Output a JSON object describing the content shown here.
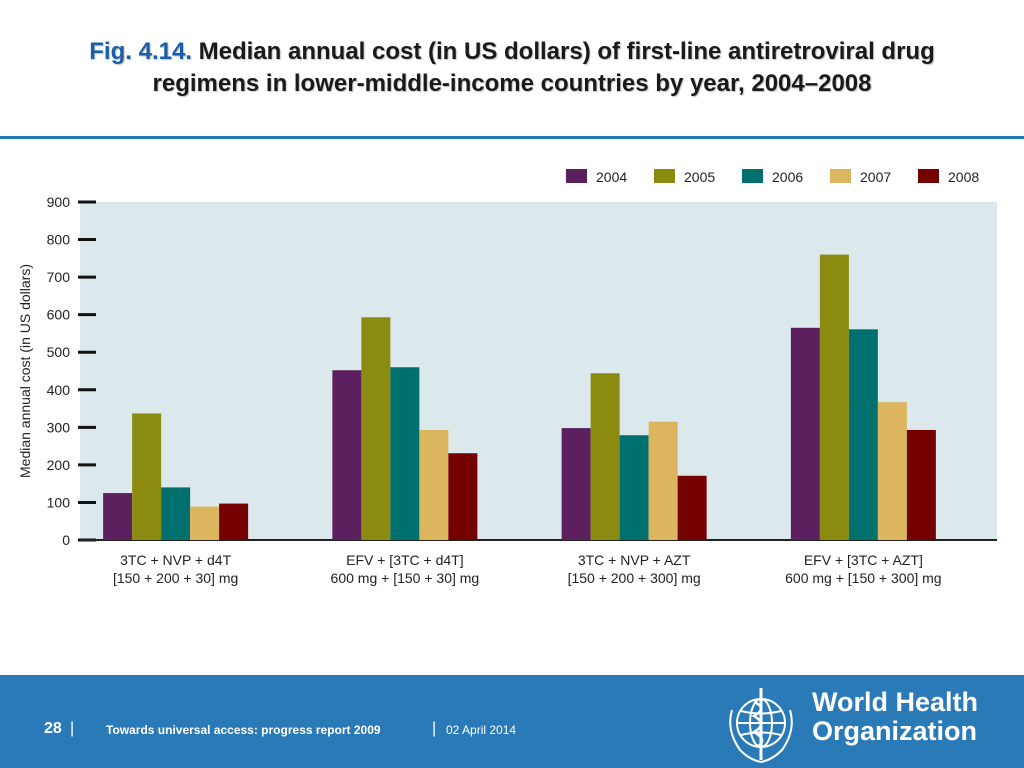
{
  "slide": {
    "fig_label": "Fig. 4.14.",
    "title_line1": "Median annual cost (in US dollars) of first-line antiretroviral drug",
    "title_line2": "regimens in lower-middle-income countries by year, 2004–2008"
  },
  "footer": {
    "page_number": "28",
    "separator": "|",
    "report_title": "Towards universal access: progress report 2009",
    "date": "02 April 2014",
    "org_line1": "World Health",
    "org_line2": "Organization",
    "org_logo_icon": "who-emblem-icon"
  },
  "colors": {
    "footer_bg": "#2a7ab8",
    "plot_bg": "#dce9ec"
  },
  "chart_data": {
    "type": "bar",
    "ylabel": "Median annual cost (in US dollars)",
    "ylim": [
      0,
      900
    ],
    "yticks": [
      0,
      100,
      200,
      300,
      400,
      500,
      600,
      700,
      800,
      900
    ],
    "legend_position": "top-right",
    "categories": [
      {
        "line1": "3TC + NVP + d4T",
        "line2": "[150 + 200 + 30] mg"
      },
      {
        "line1": "EFV + [3TC + d4T]",
        "line2": "600 mg + [150 + 30] mg"
      },
      {
        "line1": "3TC + NVP + AZT",
        "line2": "[150 + 200 + 300] mg"
      },
      {
        "line1": "EFV + [3TC + AZT]",
        "line2": "600 mg + [150 + 300] mg"
      }
    ],
    "series": [
      {
        "name": "2004",
        "color": "#5a1f5c",
        "values": [
          125,
          452,
          298,
          565
        ]
      },
      {
        "name": "2005",
        "color": "#8a8b10",
        "values": [
          337,
          593,
          444,
          760
        ]
      },
      {
        "name": "2006",
        "color": "#00706e",
        "values": [
          140,
          460,
          279,
          561
        ]
      },
      {
        "name": "2007",
        "color": "#dcb65e",
        "values": [
          89,
          293,
          315,
          367
        ]
      },
      {
        "name": "2008",
        "color": "#740000",
        "values": [
          97,
          231,
          171,
          293
        ]
      }
    ]
  }
}
